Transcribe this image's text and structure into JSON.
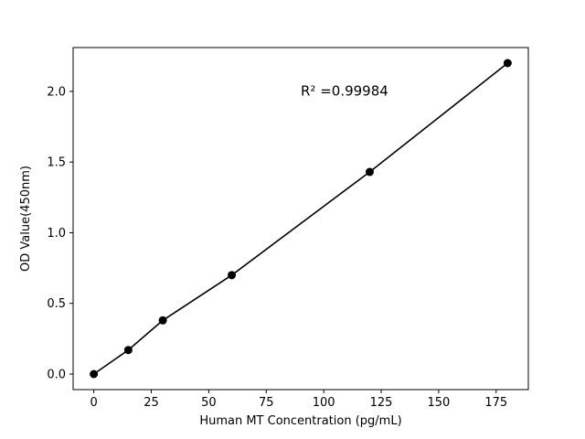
{
  "figure": {
    "background": "#ffffff"
  },
  "chart_data": {
    "type": "scatter",
    "title": "",
    "xlabel": "Human MT Concentration (pg/mL)",
    "ylabel": "OD Value(450nm)",
    "x": [
      0,
      15,
      30,
      60,
      120,
      180
    ],
    "y": [
      0.0,
      0.17,
      0.38,
      0.7,
      1.43,
      2.2
    ],
    "line": true,
    "line_color": "#000000",
    "marker_color": "#000000",
    "xlim": [
      -9,
      189
    ],
    "ylim": [
      -0.11,
      2.31
    ],
    "xticks": [
      {
        "value": 0,
        "label": "0"
      },
      {
        "value": 25,
        "label": "25"
      },
      {
        "value": 50,
        "label": "50"
      },
      {
        "value": 75,
        "label": "75"
      },
      {
        "value": 100,
        "label": "100"
      },
      {
        "value": 125,
        "label": "125"
      },
      {
        "value": 150,
        "label": "150"
      },
      {
        "value": 175,
        "label": "175"
      }
    ],
    "yticks": [
      {
        "value": 0.0,
        "label": "0.0"
      },
      {
        "value": 0.5,
        "label": "0.5"
      },
      {
        "value": 1.0,
        "label": "1.0"
      },
      {
        "value": 1.5,
        "label": "1.5"
      },
      {
        "value": 2.0,
        "label": "2.0"
      }
    ],
    "grid": false,
    "legend": null,
    "annotation": {
      "text": "R² =0.99984",
      "x": 90,
      "y": 1.97
    }
  }
}
